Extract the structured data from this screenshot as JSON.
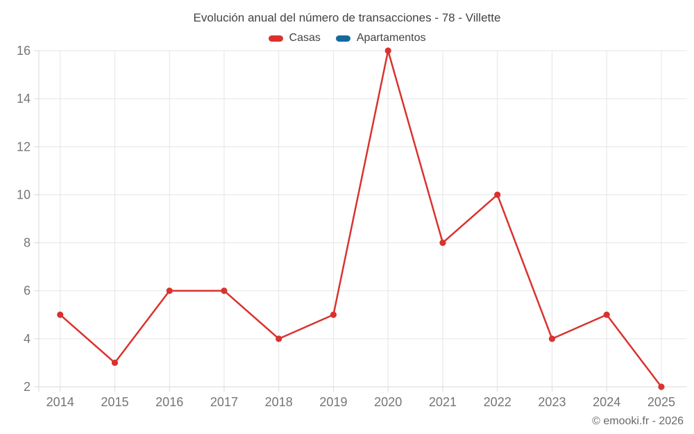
{
  "title": "Evolución anual del número de transacciones - 78 - Villette",
  "footer": "© emooki.fr - 2026",
  "chart_data": {
    "type": "line",
    "title": "Evolución anual del número de transacciones - 78 - Villette",
    "xlabel": "",
    "ylabel": "",
    "categories": [
      2014,
      2015,
      2016,
      2017,
      2018,
      2019,
      2020,
      2021,
      2022,
      2023,
      2024,
      2025
    ],
    "series": [
      {
        "name": "Casas",
        "color": "#d9322e",
        "values": [
          5,
          3,
          6,
          6,
          4,
          5,
          16,
          8,
          10,
          4,
          5,
          2
        ]
      },
      {
        "name": "Apartamentos",
        "color": "#15699e",
        "values": []
      }
    ],
    "ylim": [
      2,
      16
    ],
    "yticks": [
      2,
      4,
      6,
      8,
      10,
      12,
      14,
      16
    ],
    "grid": true,
    "legend_position": "top",
    "marker": "circle"
  },
  "palette": {
    "grid_color": "#e5e5e5",
    "axis_color": "#d8d8d8",
    "tick_label_color": "#757575",
    "title_color": "#424242",
    "footer_color": "#66696c",
    "background": "#ffffff"
  }
}
